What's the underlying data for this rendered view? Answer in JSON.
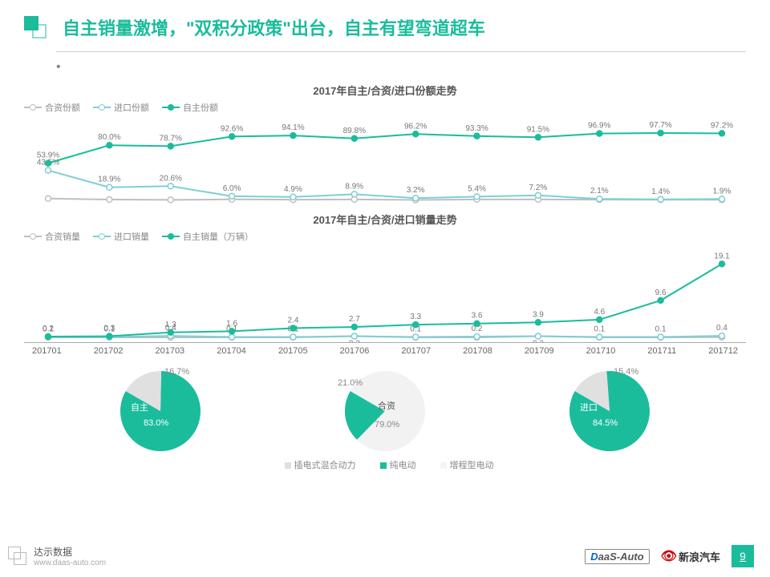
{
  "title": "自主销量激增，\"双积分政策\"出台，自主有望弯道超车",
  "colors": {
    "primary": "#1abc9c",
    "grey_line": "#bfbfbf",
    "light_blue": "#7ecfd4",
    "text_grey": "#888888",
    "pie_light": "#e0e0e0",
    "pie_white": "#f5f5f5",
    "background": "#ffffff"
  },
  "chart1": {
    "title": "2017年自主/合资/进口份额走势",
    "legend": [
      "合资份额",
      "进口份额",
      "自主份额"
    ],
    "x": [
      "201701",
      "201702",
      "201703",
      "201704",
      "201705",
      "201706",
      "201707",
      "201708",
      "201709",
      "201710",
      "201711",
      "201712"
    ],
    "series": {
      "zizhu": {
        "label": "自主份额",
        "color": "#1abc9c",
        "labels": [
          "53.9%",
          "80.0%",
          "78.7%",
          "92.6%",
          "94.1%",
          "89.8%",
          "96.2%",
          "93.3%",
          "91.5%",
          "96.9%",
          "97.7%",
          "97.2%"
        ],
        "y": [
          53.9,
          80.0,
          78.7,
          92.6,
          94.1,
          89.8,
          96.2,
          93.3,
          91.5,
          96.9,
          97.7,
          97.2
        ]
      },
      "jinkou": {
        "label": "进口份额",
        "color": "#7ecfd4",
        "labels": [
          "43.5%",
          "18.9%",
          "20.6%",
          "6.0%",
          "4.9%",
          "8.9%",
          "3.2%",
          "5.4%",
          "7.2%",
          "2.1%",
          "1.4%",
          "1.9%"
        ],
        "y": [
          43.5,
          18.9,
          20.6,
          6.0,
          4.9,
          8.9,
          3.2,
          5.4,
          7.2,
          2.1,
          1.4,
          1.9
        ]
      },
      "hezi": {
        "label": "合资份额",
        "color": "#bfbfbf",
        "labels": [
          "",
          "",
          "",
          "",
          "",
          "",
          "",
          "",
          "",
          "",
          "",
          ""
        ],
        "y": [
          2.6,
          1.1,
          0.7,
          1.4,
          1.0,
          1.3,
          0.6,
          1.3,
          1.3,
          1.0,
          0.9,
          0.9
        ]
      }
    },
    "ylim": [
      0,
      100
    ],
    "height": 110
  },
  "chart2": {
    "title": "2017年自主/合资/进口销量走势",
    "legend": [
      "合资销量",
      "进口销量",
      "自主销量（万辆）"
    ],
    "series": {
      "zizhu": {
        "label": "自主销量",
        "color": "#1abc9c",
        "labels": [
          "0.2",
          "0.3",
          "1.3",
          "1.6",
          "2.4",
          "2.7",
          "3.3",
          "3.6",
          "3.9",
          "4.6",
          "9.6",
          "19.1"
        ],
        "y": [
          0.2,
          0.3,
          1.3,
          1.6,
          2.4,
          2.7,
          3.3,
          3.6,
          3.9,
          4.6,
          9.6,
          19.1
        ]
      },
      "jinkou": {
        "label": "进口销量",
        "color": "#7ecfd4",
        "labels": [
          "0.1",
          "0.1",
          "0.4",
          "0.1",
          "0.1",
          "",
          "0.1",
          "0.2",
          "",
          "0.1",
          "0.1",
          "0.4"
        ],
        "y": [
          0.1,
          0.1,
          0.4,
          0.1,
          0.1,
          0.3,
          0.1,
          0.2,
          0.3,
          0.1,
          0.1,
          0.4
        ]
      },
      "hezi": {
        "label": "合资销量",
        "color": "#bfbfbf",
        "labels": [
          "",
          "",
          "",
          "",
          "",
          "0.3",
          "",
          "",
          "0.3",
          "",
          "",
          ""
        ],
        "y": [
          0.01,
          0.01,
          0.01,
          0.01,
          0.01,
          0.3,
          0.01,
          0.01,
          0.3,
          0.01,
          0.01,
          0.05
        ]
      }
    },
    "ylim": [
      0,
      20
    ],
    "height": 120
  },
  "pies": {
    "legend": [
      "插电式混合动力",
      "纯电动",
      "增程型电动"
    ],
    "legend_colors": [
      "#e0e0e0",
      "#1abc9c",
      "#f5f5f5"
    ],
    "items": [
      {
        "name": "自主",
        "main": 83.0,
        "main_label": "83.0%",
        "other": 16.7,
        "other_label": "16.7%",
        "main_color": "#1abc9c",
        "other_color": "#e0e0e0"
      },
      {
        "name": "合资",
        "main": 21.0,
        "main_label": "21.0%",
        "other": 79.0,
        "other_label": "79.0%",
        "main_color": "#1abc9c",
        "other_color": "#f2f2f2"
      },
      {
        "name": "进口",
        "main": 84.5,
        "main_label": "84.5%",
        "other": 15.4,
        "other_label": "15.4%",
        "main_color": "#1abc9c",
        "other_color": "#e0e0e0"
      }
    ]
  },
  "footer": {
    "brand": "达示数据",
    "url": "www.daas-auto.com",
    "logo1a": "D",
    "logo1b": "aaS-Auto",
    "logo2": "新浪汽车",
    "page": "9"
  }
}
